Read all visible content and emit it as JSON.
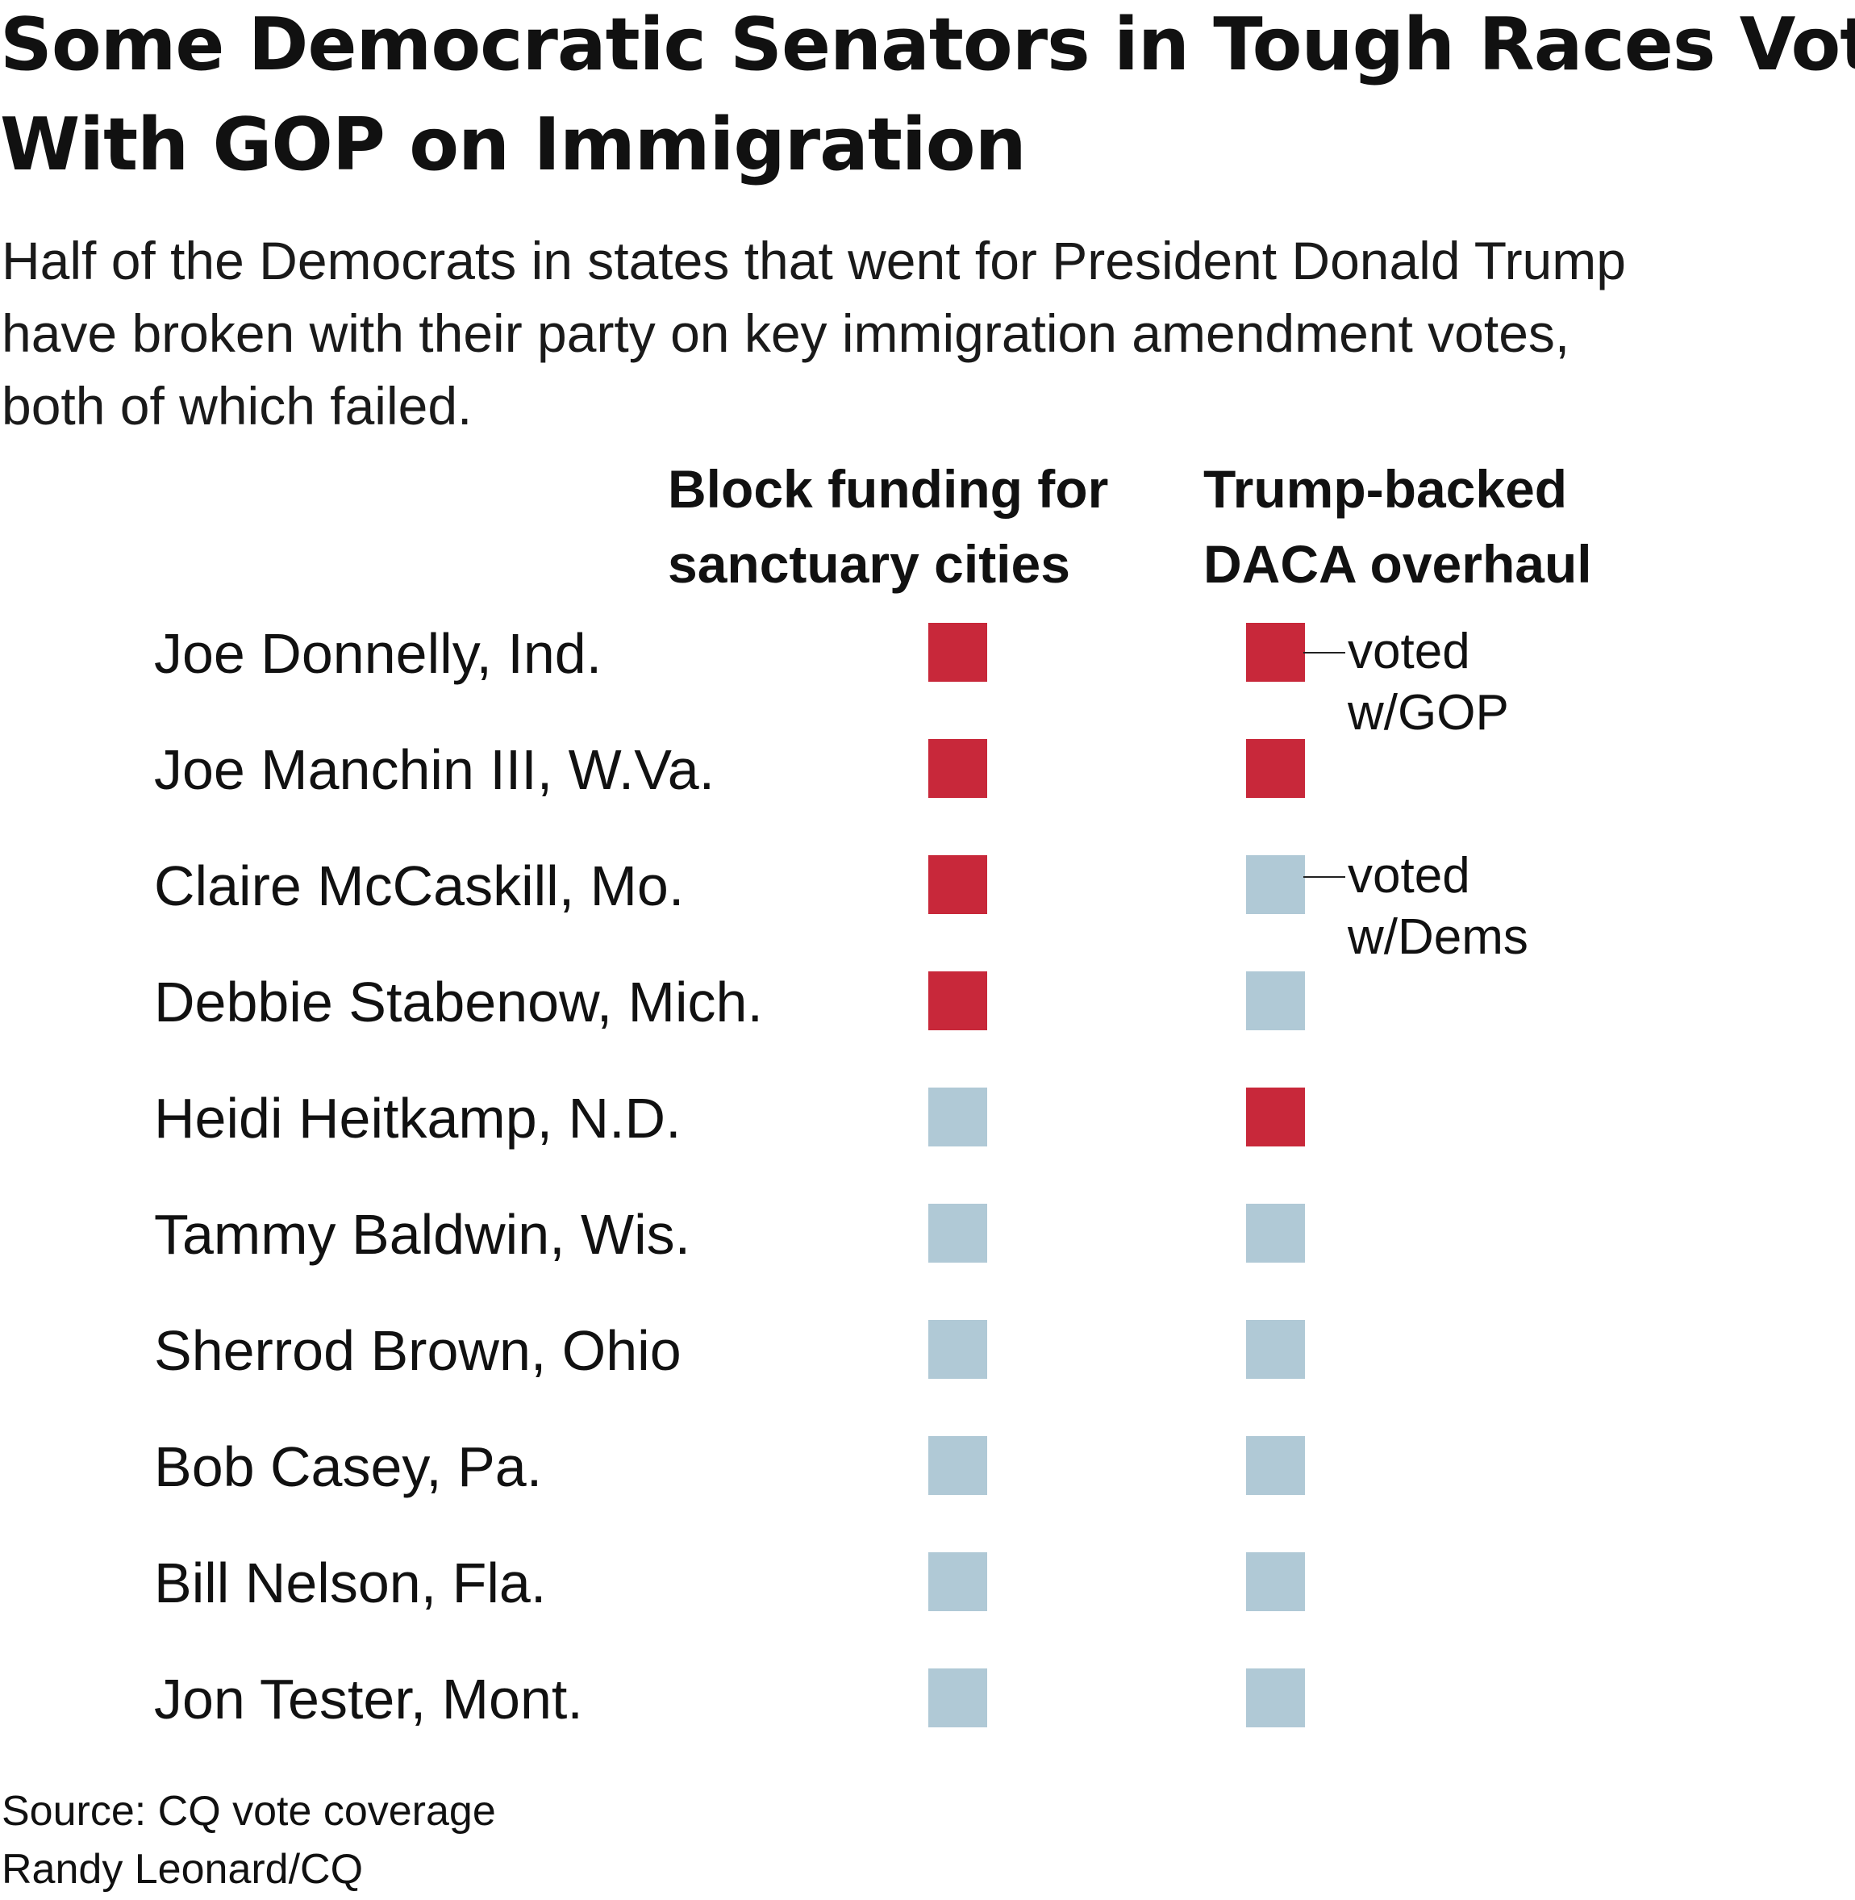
{
  "chart_data": {
    "type": "table",
    "title": [
      "Some Democratic Senators in Tough Races Vote",
      "With GOP on Immigration"
    ],
    "subtitle": [
      "Half of the Democrats in states that went for President Donald Trump",
      "have broken with their party on key immigration amendment votes,",
      "both of which failed."
    ],
    "columns": [
      [
        "Block funding for",
        "sanctuary cities"
      ],
      [
        "Trump-backed",
        "DACA overhaul"
      ]
    ],
    "legend": {
      "gop": [
        "voted",
        "w/GOP"
      ],
      "dems": [
        "voted",
        "w/Dems"
      ]
    },
    "colors": {
      "gop": "#c8283a",
      "dems": "#b0c9d6"
    },
    "rows": [
      {
        "name": "Joe Donnelly, Ind.",
        "votes": [
          "gop",
          "gop"
        ]
      },
      {
        "name": "Joe Manchin III, W.Va.",
        "votes": [
          "gop",
          "gop"
        ]
      },
      {
        "name": "Claire McCaskill, Mo.",
        "votes": [
          "gop",
          "dems"
        ]
      },
      {
        "name": "Debbie Stabenow, Mich.",
        "votes": [
          "gop",
          "dems"
        ]
      },
      {
        "name": "Heidi Heitkamp, N.D.",
        "votes": [
          "dems",
          "gop"
        ]
      },
      {
        "name": "Tammy Baldwin, Wis.",
        "votes": [
          "dems",
          "dems"
        ]
      },
      {
        "name": "Sherrod Brown, Ohio",
        "votes": [
          "dems",
          "dems"
        ]
      },
      {
        "name": "Bob Casey, Pa.",
        "votes": [
          "dems",
          "dems"
        ]
      },
      {
        "name": "Bill Nelson, Fla.",
        "votes": [
          "dems",
          "dems"
        ]
      },
      {
        "name": "Jon Tester, Mont.",
        "votes": [
          "dems",
          "dems"
        ]
      }
    ],
    "source": "Source: CQ vote coverage",
    "credit": "Randy Leonard/CQ"
  }
}
